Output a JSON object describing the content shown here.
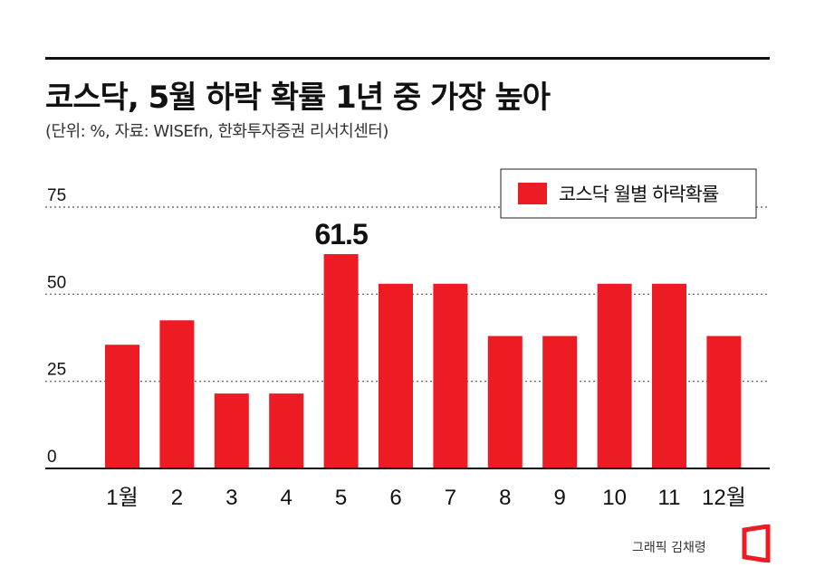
{
  "title": "코스닥, 5월 하락 확률 1년 중 가장 높아",
  "subtitle": "(단위: %, 자료: WISEfn, 한화투자증권 리서치센터)",
  "credit": "그래픽 김채령",
  "colors": {
    "bar": "#ed1c24",
    "text": "#111111",
    "grid": "#555555"
  },
  "chart_data": {
    "type": "bar",
    "categories": [
      "1월",
      "2",
      "3",
      "4",
      "5",
      "6",
      "7",
      "8",
      "9",
      "10",
      "11",
      "12월"
    ],
    "series": [
      {
        "name": "코스닥 월별 하락확률",
        "values": [
          35.5,
          42.5,
          21.5,
          21.5,
          61.5,
          53,
          53,
          38,
          38,
          53,
          53,
          38
        ]
      }
    ],
    "yticks": [
      0,
      25,
      50,
      75
    ],
    "ylim": [
      0,
      80
    ],
    "annotations": [
      {
        "category": "5",
        "label": "61.5"
      }
    ],
    "grid": true,
    "legend_position": "top-right"
  }
}
